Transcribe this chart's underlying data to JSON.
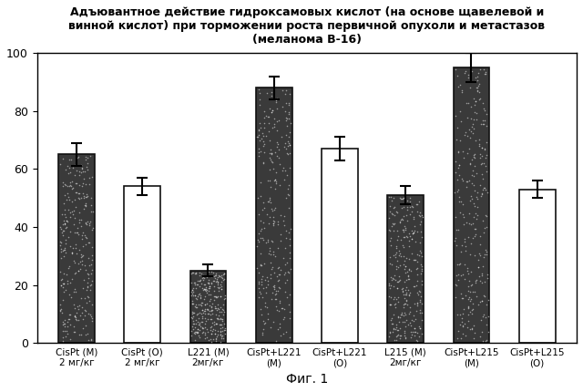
{
  "title": "Адъювантное действие гидроксамовых кислот (на основе щавелевой и\nвинной кислот) при торможении роста первичной опухоли и метастазов\n(меланома В-16)",
  "xlabel": "Фиг. 1",
  "ylim": [
    0,
    100
  ],
  "yticks": [
    0,
    20,
    40,
    60,
    80,
    100
  ],
  "bars": [
    {
      "label": "CisPt (M)\n2 мг/кг",
      "value": 65,
      "error": 4,
      "color": "dark"
    },
    {
      "label": "CisPt (O)\n2 мг/кг",
      "value": 54,
      "error": 3,
      "color": "white"
    },
    {
      "label": "L221 (M)\n2мг/кг",
      "value": 25,
      "error": 2,
      "color": "dark"
    },
    {
      "label": "CisPt+L221\n(M)",
      "value": 88,
      "error": 4,
      "color": "dark"
    },
    {
      "label": "CisPt+L221\n(O)",
      "value": 67,
      "error": 4,
      "color": "white"
    },
    {
      "label": "L215 (M)\n2мг/кг",
      "value": 51,
      "error": 3,
      "color": "dark"
    },
    {
      "label": "CisPt+L215\n(M)",
      "value": 95,
      "error": 5,
      "color": "dark"
    },
    {
      "label": "CisPt+L215\n(O)",
      "value": 53,
      "error": 3,
      "color": "white"
    }
  ],
  "dark_color": "#3a3a3a",
  "white_color": "#ffffff",
  "edge_color": "#111111",
  "bar_width": 0.55,
  "title_fontsize": 9,
  "label_fontsize": 7.5,
  "tick_fontsize": 9,
  "xlabel_fontsize": 10,
  "background_color": "#ffffff",
  "figsize": [
    6.4,
    4.3
  ],
  "dpi": 100
}
